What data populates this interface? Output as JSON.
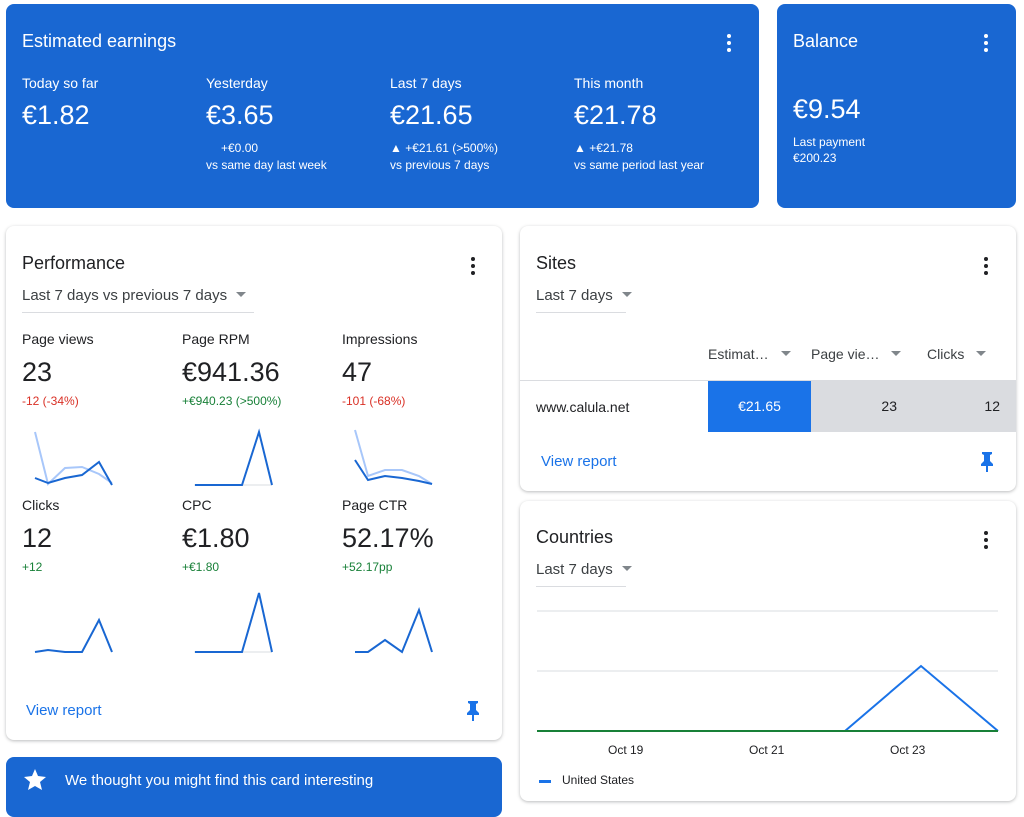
{
  "earnings": {
    "title": "Estimated earnings",
    "items": [
      {
        "label": "Today so far",
        "value": "€1.82"
      },
      {
        "label": "Yesterday",
        "value": "€3.65",
        "change": "+€0.00",
        "comparison": "vs same day last week"
      },
      {
        "label": "Last 7 days",
        "value": "€21.65",
        "change": "▲ +€21.61 (>500%)",
        "comparison": "vs previous 7 days"
      },
      {
        "label": "This month",
        "value": "€21.78",
        "change": "▲ +€21.78",
        "comparison": "vs same period last year"
      }
    ]
  },
  "balance": {
    "title": "Balance",
    "value": "€9.54",
    "last_payment_label": "Last payment",
    "last_payment": "€200.23"
  },
  "performance": {
    "title": "Performance",
    "range": "Last 7 days vs previous 7 days",
    "metrics": [
      {
        "label": "Page views",
        "value": "23",
        "change": "-12 (-34%)"
      },
      {
        "label": "Page RPM",
        "value": "€941.36",
        "change": "+€940.23 (>500%)"
      },
      {
        "label": "Impressions",
        "value": "47",
        "change": "-101 (-68%)"
      },
      {
        "label": "Clicks",
        "value": "12",
        "change": "+12"
      },
      {
        "label": "CPC",
        "value": "€1.80",
        "change": "+€1.80"
      },
      {
        "label": "Page CTR",
        "value": "52.17%",
        "change": "+52.17pp"
      }
    ],
    "link": "View report"
  },
  "sites": {
    "title": "Sites",
    "range": "Last 7 days",
    "columns": [
      "Estimat…",
      "Page vie…",
      "Clicks"
    ],
    "rows": [
      [
        "www.calula.net",
        "€21.65",
        "23",
        "12"
      ]
    ],
    "link": "View report"
  },
  "countries": {
    "title": "Countries",
    "range": "Last 7 days",
    "xticks": [
      "Oct 19",
      "Oct 21",
      "Oct 23"
    ],
    "legend": [
      "United States"
    ]
  },
  "suggestion": {
    "text": "We thought you might find this card interesting"
  }
}
